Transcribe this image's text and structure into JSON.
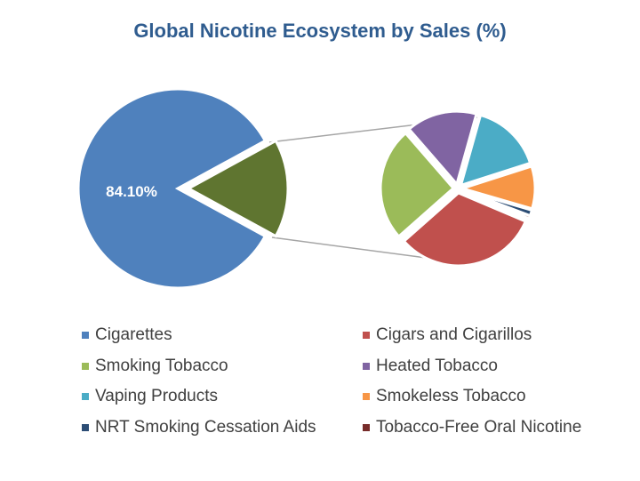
{
  "chart_data": {
    "type": "pie-of-pie",
    "title": "Global Nicotine Ecosystem by Sales (%)",
    "categories": [
      "Cigarettes",
      "Cigars and Cigarillos",
      "Smoking Tobacco",
      "Heated Tobacco",
      "Vaping Products",
      "Smokeless Tobacco",
      "NRT Smoking Cessation Aids",
      "Tobacco-Free Oral Nicotine"
    ],
    "values": [
      84.1,
      5.1,
      4.0,
      2.5,
      2.5,
      1.5,
      0.2,
      0.1
    ],
    "colors": [
      "#4F81BD",
      "#C0504D",
      "#9BBB59",
      "#8064A2",
      "#4BACC6",
      "#F79646",
      "#2C4D75",
      "#772C2A"
    ],
    "other_color": "#5F7530",
    "data_labels": {
      "Cigarettes": "84.10%"
    },
    "legend_position": "bottom"
  }
}
